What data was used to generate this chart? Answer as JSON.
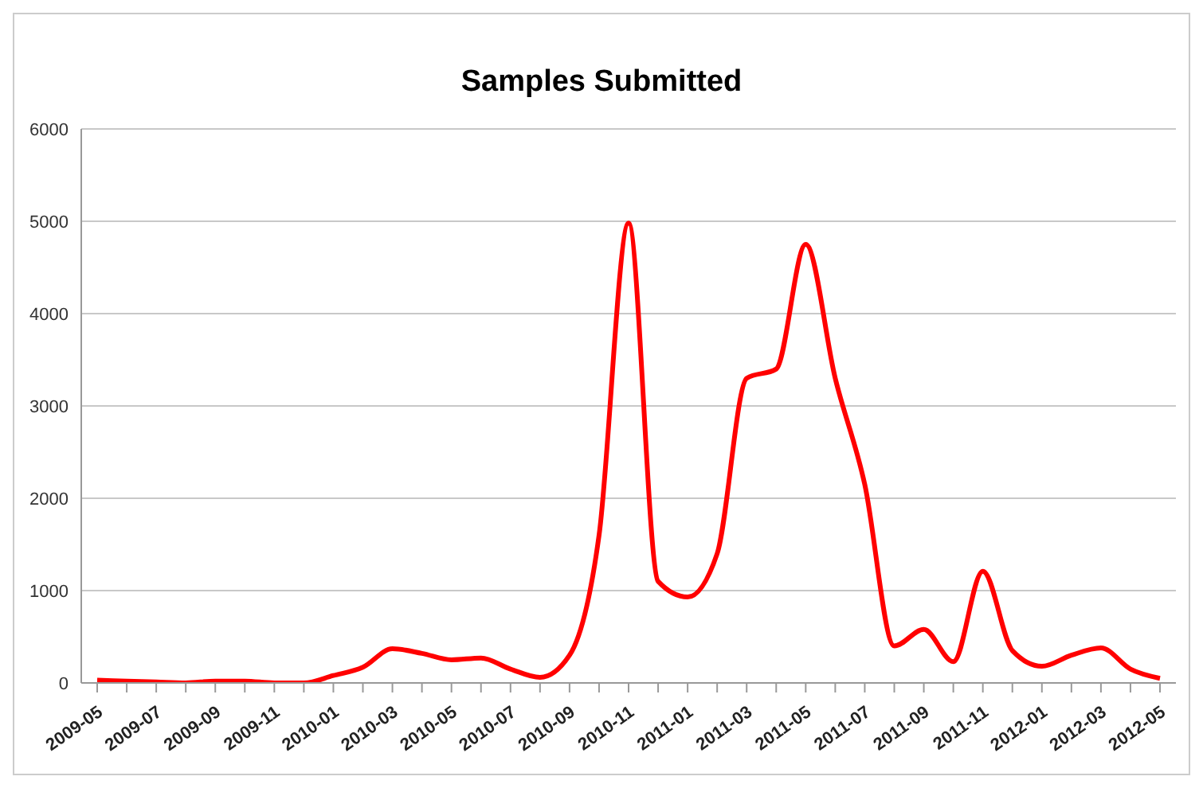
{
  "chart_data": {
    "type": "line",
    "title": "Samples Submitted",
    "categories": [
      "2009-05",
      null,
      "2009-07",
      null,
      "2009-09",
      null,
      "2009-11",
      null,
      "2010-01",
      null,
      "2010-03",
      null,
      "2010-05",
      null,
      "2010-07",
      null,
      "2010-09",
      null,
      "2010-11",
      null,
      "2011-01",
      null,
      "2011-03",
      null,
      "2011-05",
      null,
      "2011-07",
      null,
      "2011-09",
      null,
      "2011-11",
      null,
      "2012-01",
      null,
      "2012-03",
      null,
      "2012-05"
    ],
    "series": [
      {
        "color": "#ff0000",
        "values": [
          30,
          20,
          10,
          0,
          20,
          20,
          0,
          0,
          80,
          170,
          370,
          320,
          250,
          270,
          150,
          60,
          300,
          1600,
          4980,
          1100,
          930,
          1400,
          3300,
          3400,
          4750,
          3300,
          2150,
          400,
          580,
          230,
          1210,
          350,
          180,
          300,
          380,
          150,
          50
        ]
      }
    ],
    "ylim": [
      0,
      6000
    ],
    "yticks": [
      0,
      1000,
      2000,
      3000,
      4000,
      5000,
      6000
    ],
    "grid": "y",
    "legend": false,
    "marker": "none",
    "line_style": "solid"
  }
}
